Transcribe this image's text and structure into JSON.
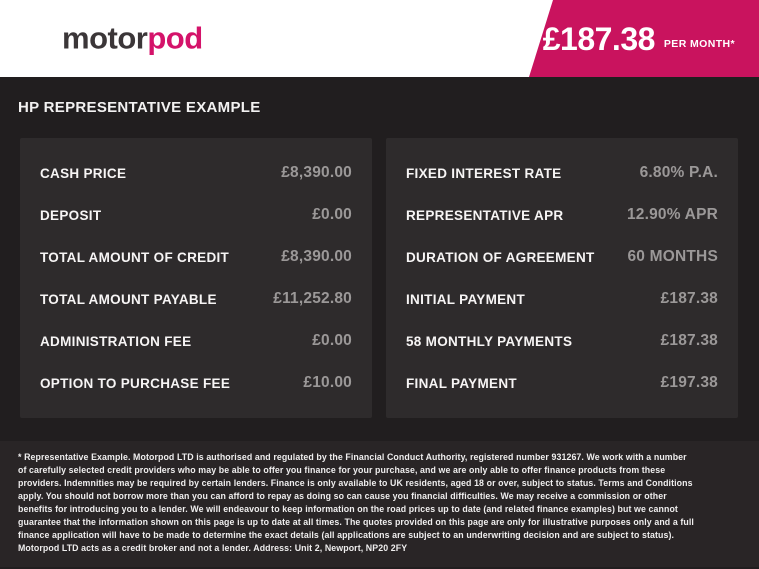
{
  "header": {
    "logo_part_dark": "motor",
    "logo_part_pink": "pod",
    "price_banner": {
      "amount": "£187.38",
      "suffix": "PER MONTH*"
    }
  },
  "title": "HP REPRESENTATIVE EXAMPLE",
  "finance_table": {
    "left_rows": [
      {
        "label": "CASH PRICE",
        "value": "£8,390.00"
      },
      {
        "label": "DEPOSIT",
        "value": "£0.00"
      },
      {
        "label": "TOTAL AMOUNT OF CREDIT",
        "value": "£8,390.00"
      },
      {
        "label": "TOTAL AMOUNT PAYABLE",
        "value": "£11,252.80"
      },
      {
        "label": "ADMINISTRATION FEE",
        "value": "£0.00"
      },
      {
        "label": "OPTION TO PURCHASE FEE",
        "value": "£10.00"
      }
    ],
    "right_rows": [
      {
        "label": "FIXED INTEREST RATE",
        "value": "6.80% P.A."
      },
      {
        "label": "REPRESENTATIVE APR",
        "value": "12.90% APR"
      },
      {
        "label": "DURATION OF AGREEMENT",
        "value": "60 MONTHS"
      },
      {
        "label": "INITIAL PAYMENT",
        "value": "£187.38"
      },
      {
        "label": "58 MONTHLY PAYMENTS",
        "value": "£187.38"
      },
      {
        "label": "FINAL PAYMENT",
        "value": "£197.38"
      }
    ]
  },
  "disclaimer": "* Representative Example. Motorpod LTD is authorised and regulated by the Financial Conduct Authority, registered number 931267. We work with a number of carefully selected credit providers who may be able to offer you finance for your purchase, and we are only able to offer finance products from these providers. Indemnities may be required by certain lenders. Finance is only available to UK residents, aged 18 or over, subject to status. Terms and Conditions apply. You should not borrow more than you can afford to repay as doing so can cause you financial difficulties. We may receive a commission or other benefits for introducing you to a lender. We will endeavour to keep information on the road prices up to date (and related finance examples) but we cannot guarantee that the information shown on this page is up to date at all times. The quotes provided on this page are only for illustrative purposes only and a full finance application will have to be made to determine the exact details (all applications are subject to an underwriting decision and are subject to status). Motorpod LTD acts as a credit broker and not a lender. Address: Unit 2, Newport, NP20 2FY",
  "colors": {
    "accent_pink": "#c9135e",
    "logo_pink": "#d4136a",
    "logo_dark": "#3b3638",
    "background_dark": "#211e1f",
    "panel_background": "#2e2b2c",
    "value_gray": "#9b9898"
  }
}
